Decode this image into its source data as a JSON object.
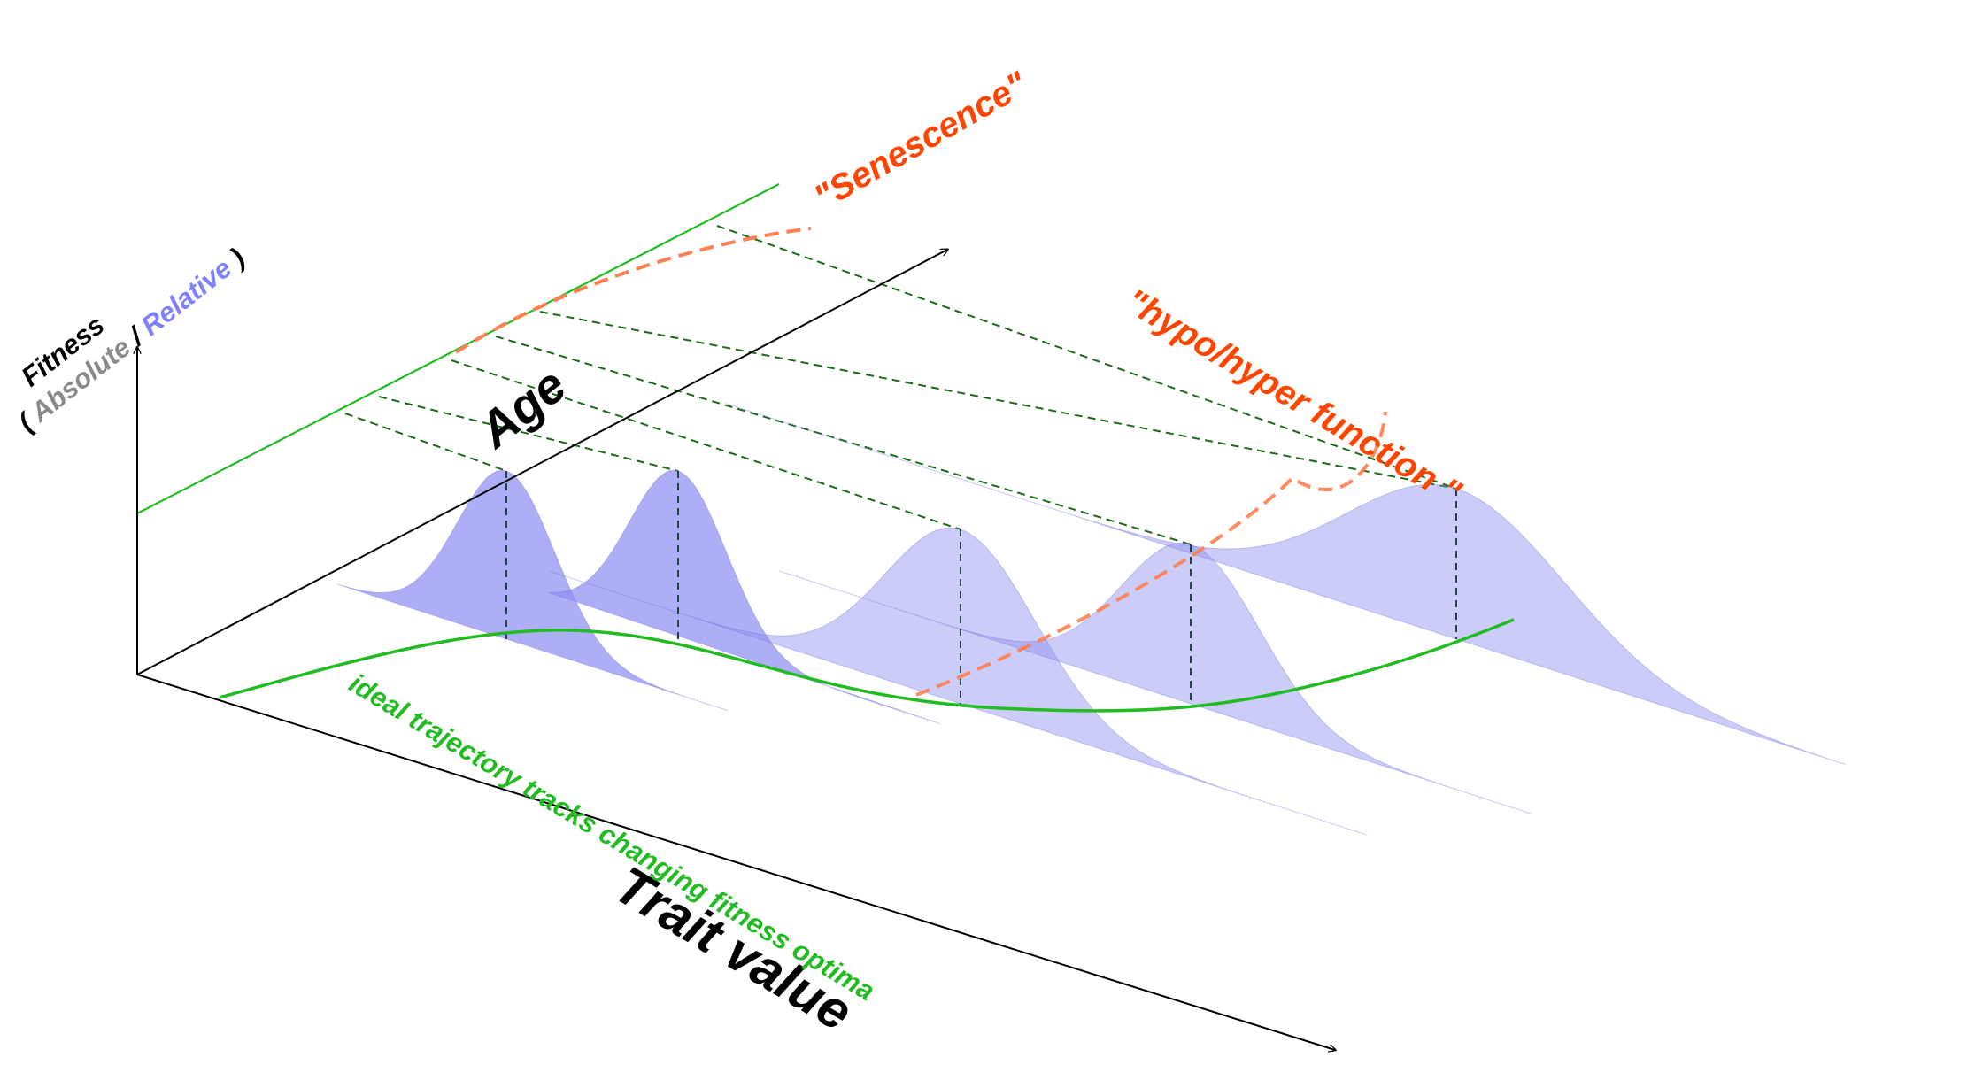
{
  "labels": {
    "fitness": "Fitness",
    "open_paren": "(",
    "absolute": "Absolute",
    "slash": "/",
    "relative": "Relative",
    "close_paren": ")",
    "age": "Age",
    "trait_value": "Trait value",
    "senescence": "\"Senescence\"",
    "hypo_hyper": "\"hypo/hyper function \"",
    "ideal_trajectory": "ideal trajectory tracks changing fitness optima"
  },
  "colors": {
    "axis": "#000000",
    "fitness_black": "#000000",
    "absolute_grey": "#8a8a8a",
    "relative_blue": "#8080ff",
    "curve_fill": "#8f8ff2",
    "curve_edge": "#6a6ad8",
    "green_line": "#22bb22",
    "dark_green_dash": "#1a6b1a",
    "trajectory_green": "#22bb22",
    "orange_label": "#ff4500",
    "orange_dash": "#ff7f50",
    "dark_dash": "#224444"
  },
  "age_profiles": [
    {
      "name": "profile-1",
      "spread": "narrow",
      "peak": "high"
    },
    {
      "name": "profile-2",
      "spread": "narrow",
      "peak": "high"
    },
    {
      "name": "profile-3",
      "spread": "wide",
      "peak": "medium"
    },
    {
      "name": "profile-4",
      "spread": "wide",
      "peak": "medium"
    },
    {
      "name": "profile-5",
      "spread": "wide",
      "peak": "high"
    }
  ]
}
